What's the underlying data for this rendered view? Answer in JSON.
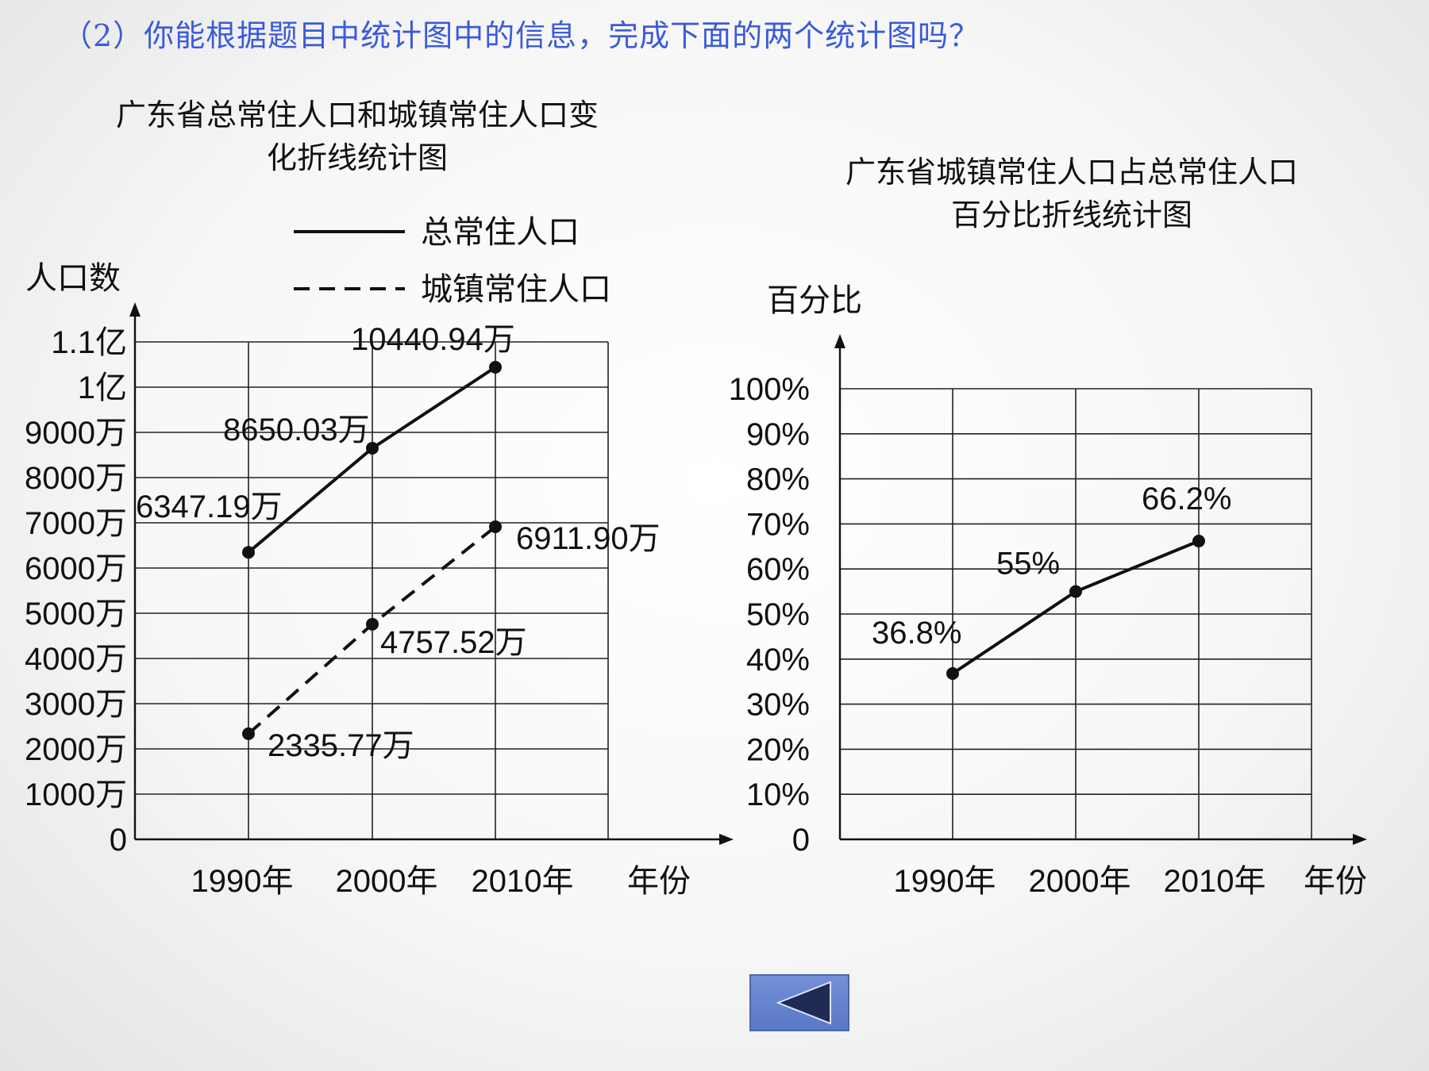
{
  "question": "（2）你能根据题目中统计图中的信息，完成下面的两个统计图吗？",
  "chart_data": [
    {
      "type": "line",
      "title_lines": [
        "广东省总常住人口和城镇常住人口变",
        "化折线统计图"
      ],
      "ylabel": "人口数",
      "xlabel": "年份",
      "categories": [
        "1990年",
        "2000年",
        "2010年"
      ],
      "y_ticks": [
        "0",
        "1000万",
        "2000万",
        "3000万",
        "4000万",
        "5000万",
        "6000万",
        "7000万",
        "8000万",
        "9000万",
        "1亿",
        "1.1亿"
      ],
      "ylim": [
        0,
        11000
      ],
      "grid": true,
      "legend_position": "top",
      "series": [
        {
          "name": "总常住人口",
          "style": "solid",
          "values": [
            6347.19,
            8650.03,
            10440.94
          ],
          "labels": [
            "6347.19万",
            "8650.03万",
            "10440.94万"
          ]
        },
        {
          "name": "城镇常住人口",
          "style": "dashed",
          "values": [
            2335.77,
            4757.52,
            6911.9
          ],
          "labels": [
            "2335.77万",
            "4757.52万",
            "6911.90万"
          ]
        }
      ]
    },
    {
      "type": "line",
      "title_lines": [
        "广东省城镇常住人口占总常住人口",
        "百分比折线统计图"
      ],
      "ylabel": "百分比",
      "xlabel": "年份",
      "categories": [
        "1990年",
        "2000年",
        "2010年"
      ],
      "y_ticks": [
        "0",
        "10%",
        "20%",
        "30%",
        "40%",
        "50%",
        "60%",
        "70%",
        "80%",
        "90%",
        "100%"
      ],
      "ylim": [
        0,
        100
      ],
      "grid": true,
      "series": [
        {
          "style": "solid",
          "values": [
            36.8,
            55,
            66.2
          ],
          "labels": [
            "36.8%",
            "55%",
            "66.2%"
          ]
        }
      ]
    }
  ],
  "nav": {
    "back_icon": "triangle-left-icon",
    "button_color": "#6683cf"
  }
}
